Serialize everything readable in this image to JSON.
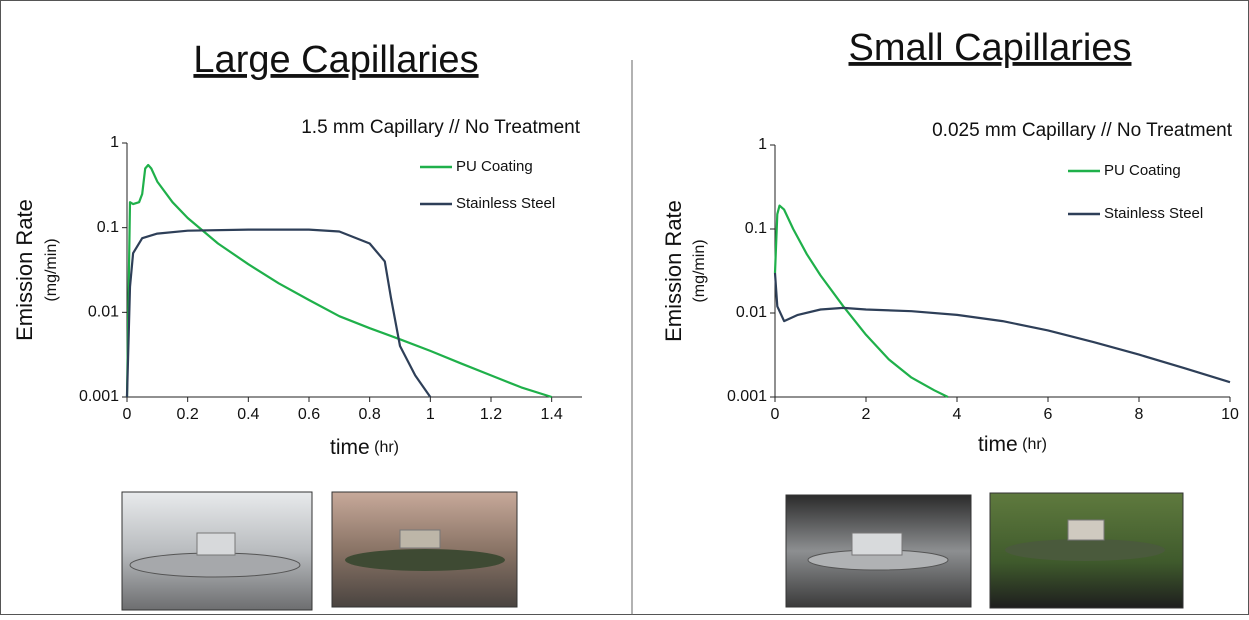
{
  "chart_data": [
    {
      "type": "line",
      "title": "Large Capillaries",
      "subtitle": "1.5 mm Capillary // No Treatment",
      "ylabel": "Emission Rate",
      "ylabel_unit": "(mg/min)",
      "xlabel": "time",
      "xlabel_unit": "(hr)",
      "xlim": [
        0,
        1.5
      ],
      "xticks": [
        0,
        0.2,
        0.4,
        0.6,
        0.8,
        1,
        1.2,
        1.4
      ],
      "ylim": [
        0.001,
        1
      ],
      "yticks": [
        0.001,
        0.01,
        0.1,
        1
      ],
      "log_y": true,
      "series": [
        {
          "name": "PU Coating",
          "color": "#1fb04a",
          "x": [
            0,
            0.01,
            0.02,
            0.04,
            0.05,
            0.06,
            0.07,
            0.08,
            0.1,
            0.15,
            0.2,
            0.3,
            0.4,
            0.5,
            0.6,
            0.7,
            0.8,
            0.9,
            1.0,
            1.1,
            1.2,
            1.3,
            1.4
          ],
          "values": [
            0.001,
            0.2,
            0.19,
            0.2,
            0.25,
            0.5,
            0.55,
            0.5,
            0.35,
            0.2,
            0.13,
            0.065,
            0.037,
            0.022,
            0.014,
            0.009,
            0.0065,
            0.0048,
            0.0035,
            0.0025,
            0.0018,
            0.0013,
            0.001
          ]
        },
        {
          "name": "Stainless Steel",
          "color": "#2e3f58",
          "x": [
            0,
            0.01,
            0.02,
            0.05,
            0.1,
            0.2,
            0.4,
            0.6,
            0.7,
            0.8,
            0.85,
            0.87,
            0.9,
            0.95,
            1.0
          ],
          "values": [
            0.001,
            0.02,
            0.05,
            0.075,
            0.085,
            0.092,
            0.095,
            0.095,
            0.09,
            0.065,
            0.04,
            0.015,
            0.004,
            0.0018,
            0.001
          ]
        }
      ]
    },
    {
      "type": "line",
      "title": "Small Capillaries",
      "subtitle": "0.025 mm Capillary // No Treatment",
      "ylabel": "Emission Rate",
      "ylabel_unit": "(mg/min)",
      "xlabel": "time",
      "xlabel_unit": "(hr)",
      "xlim": [
        0,
        10
      ],
      "xticks": [
        0,
        2,
        4,
        6,
        8,
        10
      ],
      "ylim": [
        0.001,
        1
      ],
      "yticks": [
        0.001,
        0.01,
        0.1,
        1
      ],
      "log_y": true,
      "series": [
        {
          "name": "PU Coating",
          "color": "#1fb04a",
          "x": [
            0,
            0.05,
            0.1,
            0.2,
            0.4,
            0.7,
            1,
            1.5,
            2,
            2.5,
            3,
            3.5,
            3.8
          ],
          "values": [
            0.03,
            0.15,
            0.19,
            0.17,
            0.1,
            0.05,
            0.028,
            0.012,
            0.0055,
            0.0028,
            0.0017,
            0.0012,
            0.001
          ]
        },
        {
          "name": "Stainless Steel",
          "color": "#2e3f58",
          "x": [
            0,
            0.05,
            0.2,
            0.5,
            1,
            1.5,
            2,
            3,
            4,
            5,
            6,
            7,
            8,
            9,
            10
          ],
          "values": [
            0.03,
            0.012,
            0.008,
            0.0095,
            0.011,
            0.0115,
            0.011,
            0.0105,
            0.0095,
            0.008,
            0.0062,
            0.0045,
            0.0032,
            0.0022,
            0.0015
          ]
        }
      ]
    }
  ]
}
